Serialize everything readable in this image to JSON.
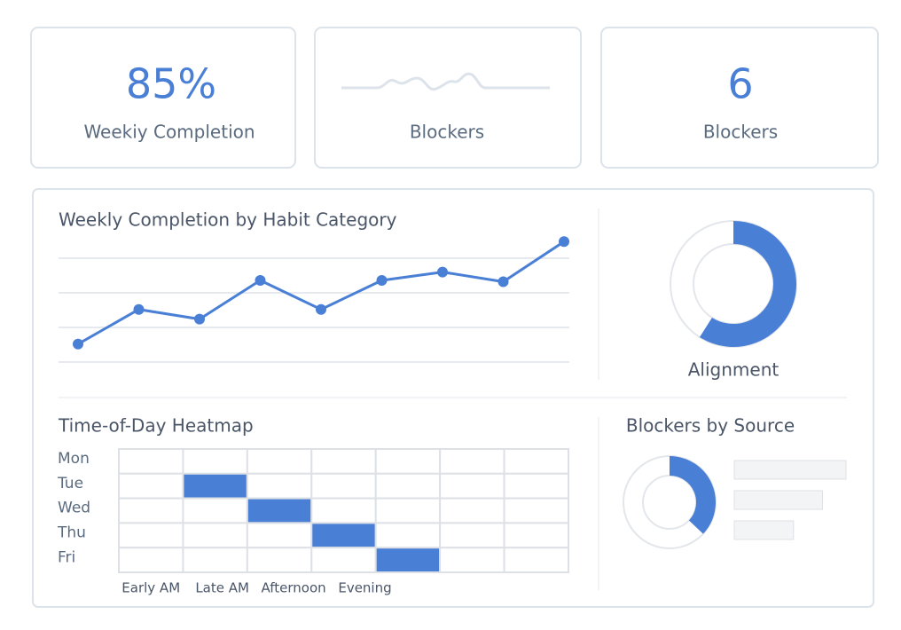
{
  "kpis": [
    {
      "value": "85%",
      "label": "Weekiy Completion"
    },
    {
      "label": "Blockers"
    },
    {
      "value": "6",
      "label": "Blockers"
    }
  ],
  "line_chart": {
    "title": "Weekly Completion by Habit Category",
    "values": [
      13,
      38,
      31,
      59,
      38,
      59,
      65,
      58,
      87
    ],
    "ylim": [
      0,
      100
    ],
    "gridlines": [
      0,
      25,
      50,
      75
    ],
    "color": "#4a7fd6"
  },
  "alignment": {
    "label": "Alignment",
    "value": 59,
    "color": "#4a7fd6"
  },
  "heatmap": {
    "title": "Time-of-Day Heatmap",
    "rows": [
      "Mon",
      "Tue",
      "Wed",
      "Thu",
      "Fri"
    ],
    "columns": [
      "Early AM",
      "Late AM",
      "Afternoon",
      "Evening",
      null,
      null,
      null
    ],
    "cells": [
      [
        0,
        0,
        0,
        0,
        0,
        0,
        0
      ],
      [
        0,
        1,
        0,
        0,
        0,
        0,
        0
      ],
      [
        0,
        0,
        1,
        0,
        0,
        0,
        0
      ],
      [
        0,
        0,
        0,
        1,
        0,
        0,
        0
      ],
      [
        0,
        0,
        0,
        0,
        1,
        0,
        0
      ]
    ],
    "color": "#4a7fd6"
  },
  "blockers_by_source": {
    "title": "Blockers by Source",
    "value": 37,
    "color": "#4a7fd6",
    "bars": [
      100,
      79,
      53
    ],
    "xlim": [
      0,
      100
    ]
  }
}
